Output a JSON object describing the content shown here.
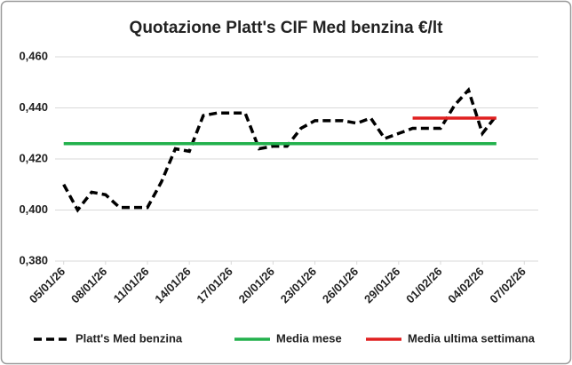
{
  "chart_data": {
    "type": "line",
    "title": "Quotazione Platt's CIF Med benzina €/lt",
    "xlim": [
      "04/01/26",
      "08/02/26"
    ],
    "xticks": [
      "05/01/26",
      "08/01/26",
      "11/01/26",
      "14/01/26",
      "17/01/26",
      "20/01/26",
      "23/01/26",
      "26/01/26",
      "29/01/26",
      "01/02/26",
      "04/02/26",
      "07/02/26"
    ],
    "ylim": [
      0.38,
      0.46
    ],
    "yticks": [
      {
        "value": 0.38,
        "label": "0,380"
      },
      {
        "value": 0.4,
        "label": "0,400"
      },
      {
        "value": 0.42,
        "label": "0,420"
      },
      {
        "value": 0.44,
        "label": "0,440"
      },
      {
        "value": 0.46,
        "label": "0,460"
      }
    ],
    "grid": true,
    "legend": "bottom",
    "series": [
      {
        "name": "Platt's Med benzina",
        "color": "#000000",
        "dashed": true,
        "x": [
          "05/01/26",
          "06/01/26",
          "07/01/26",
          "08/01/26",
          "09/01/26",
          "10/01/26",
          "11/01/26",
          "12/01/26",
          "13/01/26",
          "14/01/26",
          "15/01/26",
          "16/01/26",
          "17/01/26",
          "18/01/26",
          "19/01/26",
          "20/01/26",
          "21/01/26",
          "22/01/26",
          "23/01/26",
          "24/01/26",
          "25/01/26",
          "26/01/26",
          "27/01/26",
          "28/01/26",
          "29/01/26",
          "30/01/26",
          "31/01/26",
          "01/02/26",
          "02/02/26",
          "03/02/26",
          "04/02/26",
          "05/02/26"
        ],
        "values": [
          0.41,
          0.4,
          0.407,
          0.406,
          0.401,
          0.401,
          0.401,
          0.411,
          0.424,
          0.423,
          0.437,
          0.438,
          0.438,
          0.438,
          0.424,
          0.425,
          0.425,
          0.432,
          0.435,
          0.435,
          0.435,
          0.434,
          0.436,
          0.428,
          0.43,
          0.432,
          0.432,
          0.432,
          0.441,
          0.447,
          0.43,
          0.437
        ]
      },
      {
        "name": "Media mese",
        "color": "#22b14c",
        "dashed": false,
        "x": [
          "05/01/26",
          "05/02/26"
        ],
        "values": [
          0.426,
          0.426
        ]
      },
      {
        "name": "Media ultima settimana",
        "color": "#e02020",
        "dashed": false,
        "x": [
          "30/01/26",
          "05/02/26"
        ],
        "values": [
          0.436,
          0.436
        ]
      }
    ]
  }
}
